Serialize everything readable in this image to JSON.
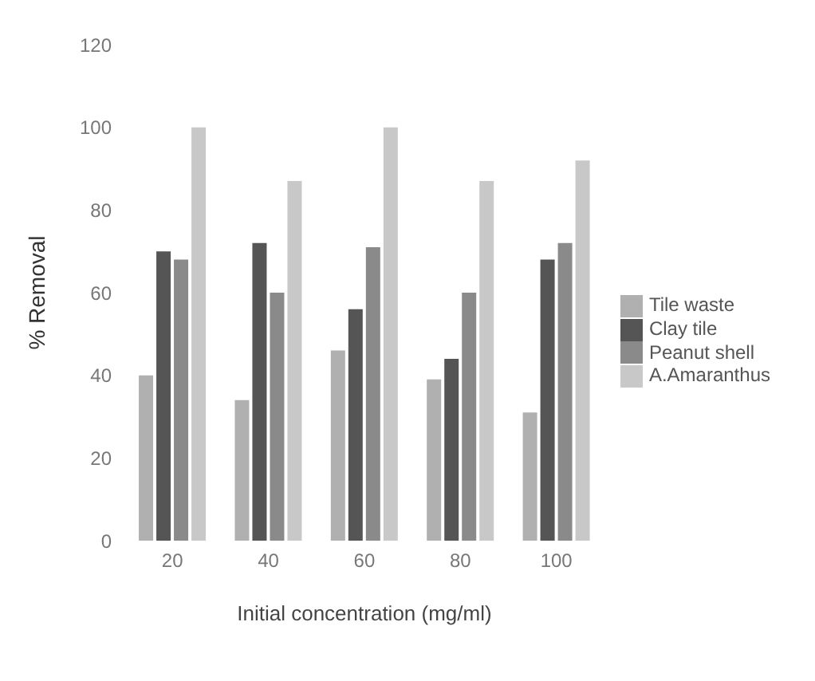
{
  "chart_data": {
    "type": "bar",
    "xlabel": "Initial concentration (mg/ml)",
    "ylabel": "% Removal",
    "categories": [
      "20",
      "40",
      "60",
      "80",
      "100"
    ],
    "series": [
      {
        "name": "Tile waste",
        "color": "#b0b0b0",
        "values": [
          40,
          34,
          46,
          39,
          31
        ]
      },
      {
        "name": "Clay tile",
        "color": "#555555",
        "values": [
          70,
          72,
          56,
          44,
          68
        ]
      },
      {
        "name": "Peanut shell",
        "color": "#8a8a8a",
        "values": [
          68,
          60,
          71,
          60,
          72
        ]
      },
      {
        "name": "A.Amaranthus",
        "color": "#c8c8c8",
        "values": [
          100,
          87,
          100,
          87,
          92
        ]
      }
    ],
    "ylim": [
      0,
      120
    ],
    "yticks": [
      0,
      20,
      40,
      60,
      80,
      100,
      120
    ],
    "grid": false,
    "legend": "right"
  }
}
